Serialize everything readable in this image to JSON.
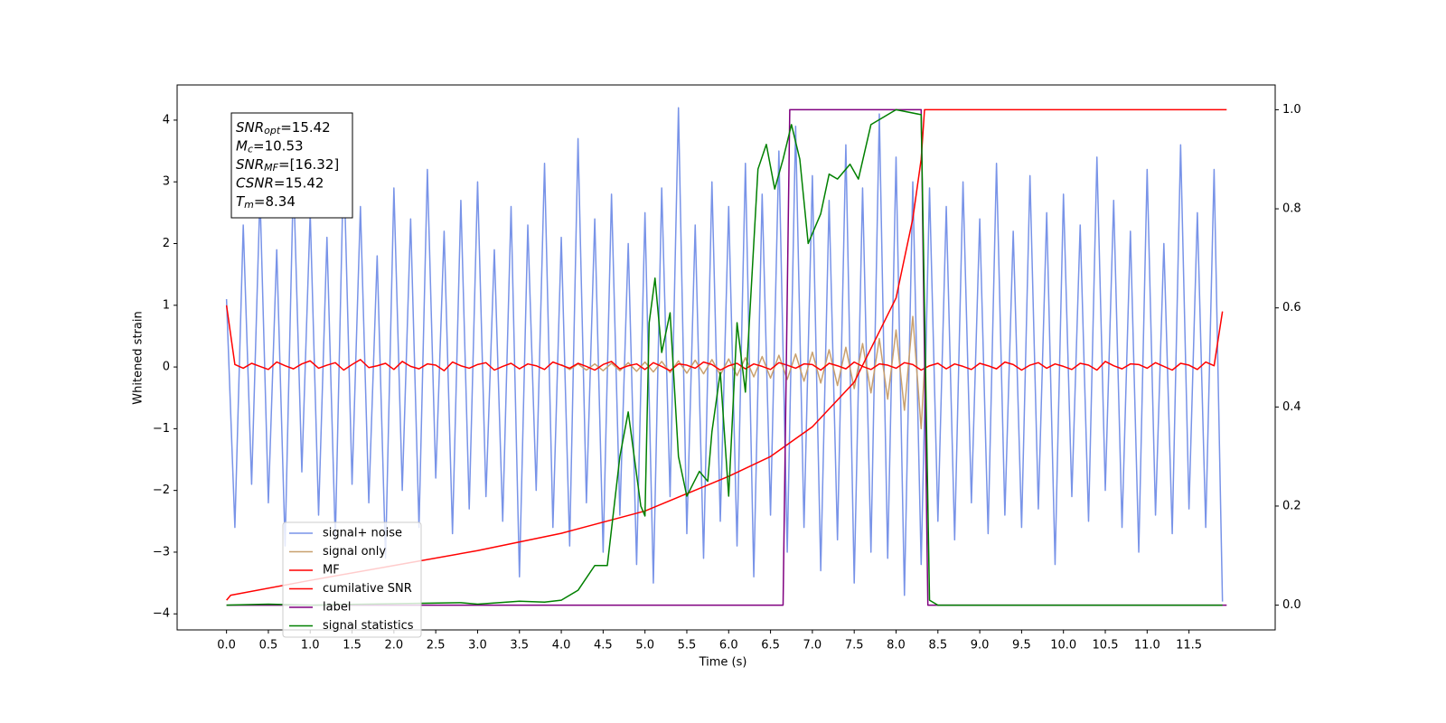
{
  "chart_data": {
    "type": "line",
    "xlabel": "Time (s)",
    "ylabel": "Whitened strain",
    "xlim": [
      -0.59,
      12.53
    ],
    "ylim": [
      -4.26,
      4.57
    ],
    "y2lim": [
      -0.05,
      1.05
    ],
    "xticks": [
      {
        "value": 0,
        "label": "0.0"
      },
      0.5,
      {
        "value": 1,
        "label": "1.0"
      },
      1.5,
      {
        "value": 2,
        "label": "2.0"
      },
      2.5,
      {
        "value": 3,
        "label": "3.0"
      },
      3.5,
      {
        "value": 4,
        "label": "4.0"
      },
      4.5,
      {
        "value": 5,
        "label": "5.0"
      },
      5.5,
      {
        "value": 6,
        "label": "6.0"
      },
      6.5,
      {
        "value": 7,
        "label": "7.0"
      },
      7.5,
      {
        "value": 8,
        "label": "8.0"
      },
      8.5,
      {
        "value": 9,
        "label": "9.0"
      },
      9.5,
      {
        "value": 10,
        "label": "10.0"
      },
      10.5,
      {
        "value": 11,
        "label": "11.0"
      },
      11.5
    ],
    "yticks": [
      {
        "value": -4,
        "label": "−4"
      },
      {
        "value": -3,
        "label": "−3"
      },
      {
        "value": -2,
        "label": "−2"
      },
      {
        "value": -1,
        "label": "−1"
      },
      0,
      1,
      2,
      3,
      4
    ],
    "y2ticks": [
      {
        "value": 0,
        "label": "0.0"
      },
      0.2,
      0.4,
      0.6,
      0.8,
      {
        "value": 1,
        "label": "1.0"
      }
    ],
    "legend": "lower left",
    "annotations": [
      {
        "name": "SNR",
        "subscript": "opt",
        "text": "=15.42"
      },
      {
        "name": "M",
        "subscript": "c",
        "text": "=10.53"
      },
      {
        "name": "SNR",
        "subscript": "MF",
        "text": "=[16.32]"
      },
      {
        "name": "CSNR",
        "text": "=15.42"
      },
      {
        "name": "T",
        "subscript": "m",
        "text": "=8.34"
      }
    ],
    "x": [
      0.0,
      0.1,
      0.2,
      0.3,
      0.4,
      0.5,
      0.6,
      0.7,
      0.8,
      0.9,
      1.0,
      1.1,
      1.2,
      1.3,
      1.4,
      1.5,
      1.6,
      1.7,
      1.8,
      1.9,
      2.0,
      2.1,
      2.2,
      2.3,
      2.4,
      2.5,
      2.6,
      2.7,
      2.8,
      2.9,
      3.0,
      3.1,
      3.2,
      3.3,
      3.4,
      3.5,
      3.6,
      3.7,
      3.8,
      3.9,
      4.0,
      4.1,
      4.2,
      4.3,
      4.4,
      4.5,
      4.6,
      4.7,
      4.8,
      4.9,
      5.0,
      5.1,
      5.2,
      5.3,
      5.4,
      5.5,
      5.6,
      5.7,
      5.8,
      5.9,
      6.0,
      6.1,
      6.2,
      6.3,
      6.4,
      6.5,
      6.6,
      6.7,
      6.8,
      6.9,
      7.0,
      7.1,
      7.2,
      7.3,
      7.4,
      7.5,
      7.6,
      7.7,
      7.8,
      7.9,
      8.0,
      8.1,
      8.2,
      8.3,
      8.4,
      8.5,
      8.6,
      8.7,
      8.8,
      8.9,
      9.0,
      9.1,
      9.2,
      9.3,
      9.4,
      9.5,
      9.6,
      9.7,
      9.8,
      9.9,
      10.0,
      10.1,
      10.2,
      10.3,
      10.4,
      10.5,
      10.6,
      10.7,
      10.8,
      10.9,
      11.0,
      11.1,
      11.2,
      11.3,
      11.4,
      11.5,
      11.6,
      11.7,
      11.8,
      11.9
    ],
    "series": [
      {
        "name": "signal+ noise",
        "color": "#7893e8",
        "values": [
          1.1,
          -2.6,
          2.3,
          -1.9,
          2.8,
          -2.2,
          1.9,
          -2.9,
          3.1,
          -1.7,
          2.5,
          -2.4,
          2.1,
          -2.8,
          3.4,
          -1.9,
          2.6,
          -2.2,
          1.8,
          -3.1,
          2.9,
          -2.0,
          2.4,
          -2.6,
          3.2,
          -1.8,
          2.2,
          -2.7,
          2.7,
          -2.3,
          3.0,
          -2.1,
          1.9,
          -2.5,
          2.6,
          -3.4,
          2.3,
          -2.0,
          3.3,
          -2.6,
          2.1,
          -2.9,
          3.7,
          -2.2,
          2.4,
          -3.0,
          2.8,
          -2.4,
          2.0,
          -3.2,
          2.5,
          -3.5,
          2.9,
          -2.1,
          4.2,
          -2.7,
          2.3,
          -3.1,
          3.0,
          -2.5,
          2.6,
          -2.9,
          3.3,
          -3.4,
          2.8,
          -2.4,
          3.5,
          -3.0,
          3.9,
          -2.6,
          3.1,
          -3.3,
          2.7,
          -2.8,
          3.6,
          -3.5,
          2.9,
          -3.0,
          4.1,
          -3.1,
          3.4,
          -3.7,
          3.0,
          -3.2,
          2.9,
          -2.5,
          2.6,
          -2.8,
          3.0,
          -2.2,
          2.4,
          -2.7,
          3.3,
          -2.4,
          2.2,
          -2.6,
          3.1,
          -2.3,
          2.5,
          -3.2,
          2.8,
          -2.1,
          2.3,
          -2.5,
          3.4,
          -2.0,
          2.7,
          -2.6,
          2.2,
          -3.0,
          3.2,
          -2.4,
          2.0,
          -2.7,
          3.6,
          -2.3,
          2.5,
          -2.6,
          3.2,
          -3.8
        ]
      },
      {
        "name": "signal only",
        "color": "#c8a06e",
        "x": [
          4.0,
          4.1,
          4.2,
          4.3,
          4.4,
          4.5,
          4.6,
          4.7,
          4.8,
          4.9,
          5.0,
          5.1,
          5.2,
          5.3,
          5.4,
          5.5,
          5.6,
          5.7,
          5.8,
          5.9,
          6.0,
          6.1,
          6.2,
          6.3,
          6.4,
          6.5,
          6.6,
          6.7,
          6.8,
          6.9,
          7.0,
          7.1,
          7.2,
          7.3,
          7.4,
          7.5,
          7.6,
          7.7,
          7.8,
          7.9,
          8.0,
          8.1,
          8.2,
          8.3,
          8.34
        ],
        "values": [
          0.04,
          -0.04,
          0.05,
          -0.05,
          0.05,
          -0.06,
          0.06,
          -0.06,
          0.07,
          -0.07,
          0.08,
          -0.08,
          0.09,
          -0.09,
          0.1,
          -0.1,
          0.11,
          -0.11,
          0.12,
          -0.13,
          0.13,
          -0.14,
          0.15,
          -0.16,
          0.17,
          -0.18,
          0.19,
          -0.2,
          0.21,
          -0.23,
          0.24,
          -0.26,
          0.28,
          -0.3,
          0.32,
          -0.35,
          0.38,
          -0.42,
          0.46,
          -0.52,
          0.6,
          -0.7,
          0.82,
          -1.0,
          0
        ]
      },
      {
        "name": "MF",
        "color": "#ff0000",
        "values": [
          1.0,
          0.04,
          -0.02,
          0.06,
          0.01,
          -0.04,
          0.08,
          0.02,
          -0.03,
          0.05,
          0.1,
          -0.02,
          0.03,
          0.07,
          -0.05,
          0.04,
          0.12,
          -0.01,
          0.02,
          0.06,
          -0.04,
          0.09,
          0.01,
          -0.03,
          0.05,
          0.03,
          -0.06,
          0.08,
          0.02,
          -0.02,
          0.04,
          0.07,
          -0.05,
          0.01,
          0.06,
          -0.03,
          0.05,
          0.02,
          -0.04,
          0.08,
          0.03,
          -0.02,
          0.06,
          0.01,
          -0.05,
          0.04,
          0.09,
          -0.03,
          0.02,
          0.05,
          -0.04,
          0.07,
          0.01,
          -0.06,
          0.05,
          0.03,
          -0.02,
          0.08,
          0.04,
          -0.05,
          0.02,
          0.06,
          -0.03,
          0.05,
          0.01,
          -0.04,
          0.07,
          0.03,
          -0.02,
          0.05,
          0.04,
          -0.05,
          0.06,
          0.02,
          -0.03,
          0.08,
          0.01,
          -0.04,
          0.05,
          0.03,
          -0.02,
          0.07,
          0.04,
          -0.05,
          0.02,
          0.06,
          -0.03,
          0.05,
          0.01,
          -0.04,
          0.06,
          0.02,
          -0.03,
          0.08,
          0.04,
          -0.05,
          0.03,
          0.07,
          -0.02,
          0.05,
          0.01,
          -0.04,
          0.06,
          0.03,
          -0.05,
          0.09,
          0.02,
          -0.03,
          0.05,
          0.04,
          -0.02,
          0.07,
          0.01,
          -0.05,
          0.06,
          0.03,
          -0.04,
          0.08,
          0.02,
          0.9
        ]
      },
      {
        "name": "cumilative SNR",
        "color": "#ff0000",
        "axis": "y2",
        "x": [
          0,
          0.05,
          1,
          2,
          3,
          4,
          5,
          6,
          6.5,
          7,
          7.5,
          8,
          8.2,
          8.3,
          8.34,
          11.5,
          11.95
        ],
        "values": [
          0.01,
          0.02,
          0.05,
          0.08,
          0.11,
          0.145,
          0.19,
          0.26,
          0.3,
          0.36,
          0.45,
          0.62,
          0.78,
          0.9,
          1.0,
          1.0,
          1.0
        ]
      },
      {
        "name": "label",
        "color": "#800080",
        "axis": "y2",
        "x": [
          0,
          6.65,
          6.73,
          8.3,
          8.38,
          11.95
        ],
        "values": [
          0,
          0,
          1,
          1,
          0,
          0
        ]
      },
      {
        "name": "signal statistics",
        "color": "#008000",
        "axis": "y2",
        "x": [
          0,
          0.5,
          1,
          2,
          2.8,
          3,
          3.5,
          3.8,
          4,
          4.2,
          4.4,
          4.55,
          4.7,
          4.8,
          4.95,
          5,
          5.05,
          5.12,
          5.2,
          5.3,
          5.4,
          5.5,
          5.65,
          5.75,
          5.8,
          5.9,
          6,
          6.1,
          6.2,
          6.35,
          6.45,
          6.55,
          6.65,
          6.75,
          6.85,
          6.95,
          7.1,
          7.2,
          7.3,
          7.45,
          7.55,
          7.7,
          7.9,
          8,
          8.3,
          8.35,
          8.4,
          8.5,
          11.9
        ],
        "values": [
          0,
          0.002,
          0,
          0.003,
          0.005,
          0.002,
          0.008,
          0.006,
          0.01,
          0.03,
          0.08,
          0.08,
          0.3,
          0.39,
          0.2,
          0.18,
          0.57,
          0.66,
          0.51,
          0.59,
          0.3,
          0.22,
          0.27,
          0.25,
          0.35,
          0.47,
          0.22,
          0.57,
          0.43,
          0.88,
          0.93,
          0.84,
          0.9,
          0.97,
          0.9,
          0.73,
          0.79,
          0.87,
          0.86,
          0.89,
          0.86,
          0.97,
          0.99,
          1.0,
          0.99,
          0.5,
          0.01,
          0,
          0
        ]
      }
    ]
  }
}
